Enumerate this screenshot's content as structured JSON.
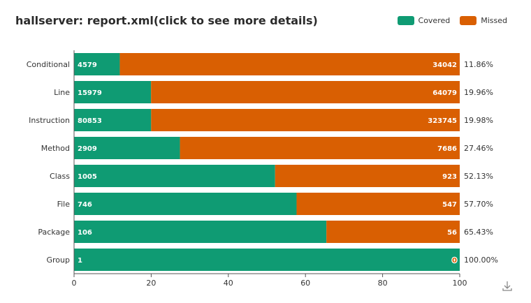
{
  "title": "hallserver: report.xml(click to see more details)",
  "legend": {
    "covered_label": "Covered",
    "missed_label": "Missed"
  },
  "colors": {
    "covered": "#0f9b73",
    "missed": "#d95f02",
    "axis": "#555555",
    "text": "#333333"
  },
  "chart_data": {
    "type": "bar",
    "orientation": "horizontal",
    "stacked": "percent",
    "categories": [
      "Conditional",
      "Line",
      "Instruction",
      "Method",
      "Class",
      "File",
      "Package",
      "Group"
    ],
    "series": [
      {
        "name": "Covered",
        "values": [
          4579,
          15979,
          80853,
          2909,
          1005,
          746,
          106,
          1
        ]
      },
      {
        "name": "Missed",
        "values": [
          34042,
          64079,
          323745,
          7686,
          923,
          547,
          56,
          0
        ]
      }
    ],
    "coverage_labels": [
      "11.86%",
      "19.96%",
      "19.98%",
      "27.46%",
      "52.13%",
      "57.70%",
      "65.43%",
      "100.00%"
    ],
    "xlim": [
      0,
      100
    ],
    "xticks": [
      0,
      20,
      40,
      60,
      80,
      100
    ],
    "grid": false,
    "legend_position": "top-right"
  },
  "icons": {
    "download": "download-icon"
  }
}
